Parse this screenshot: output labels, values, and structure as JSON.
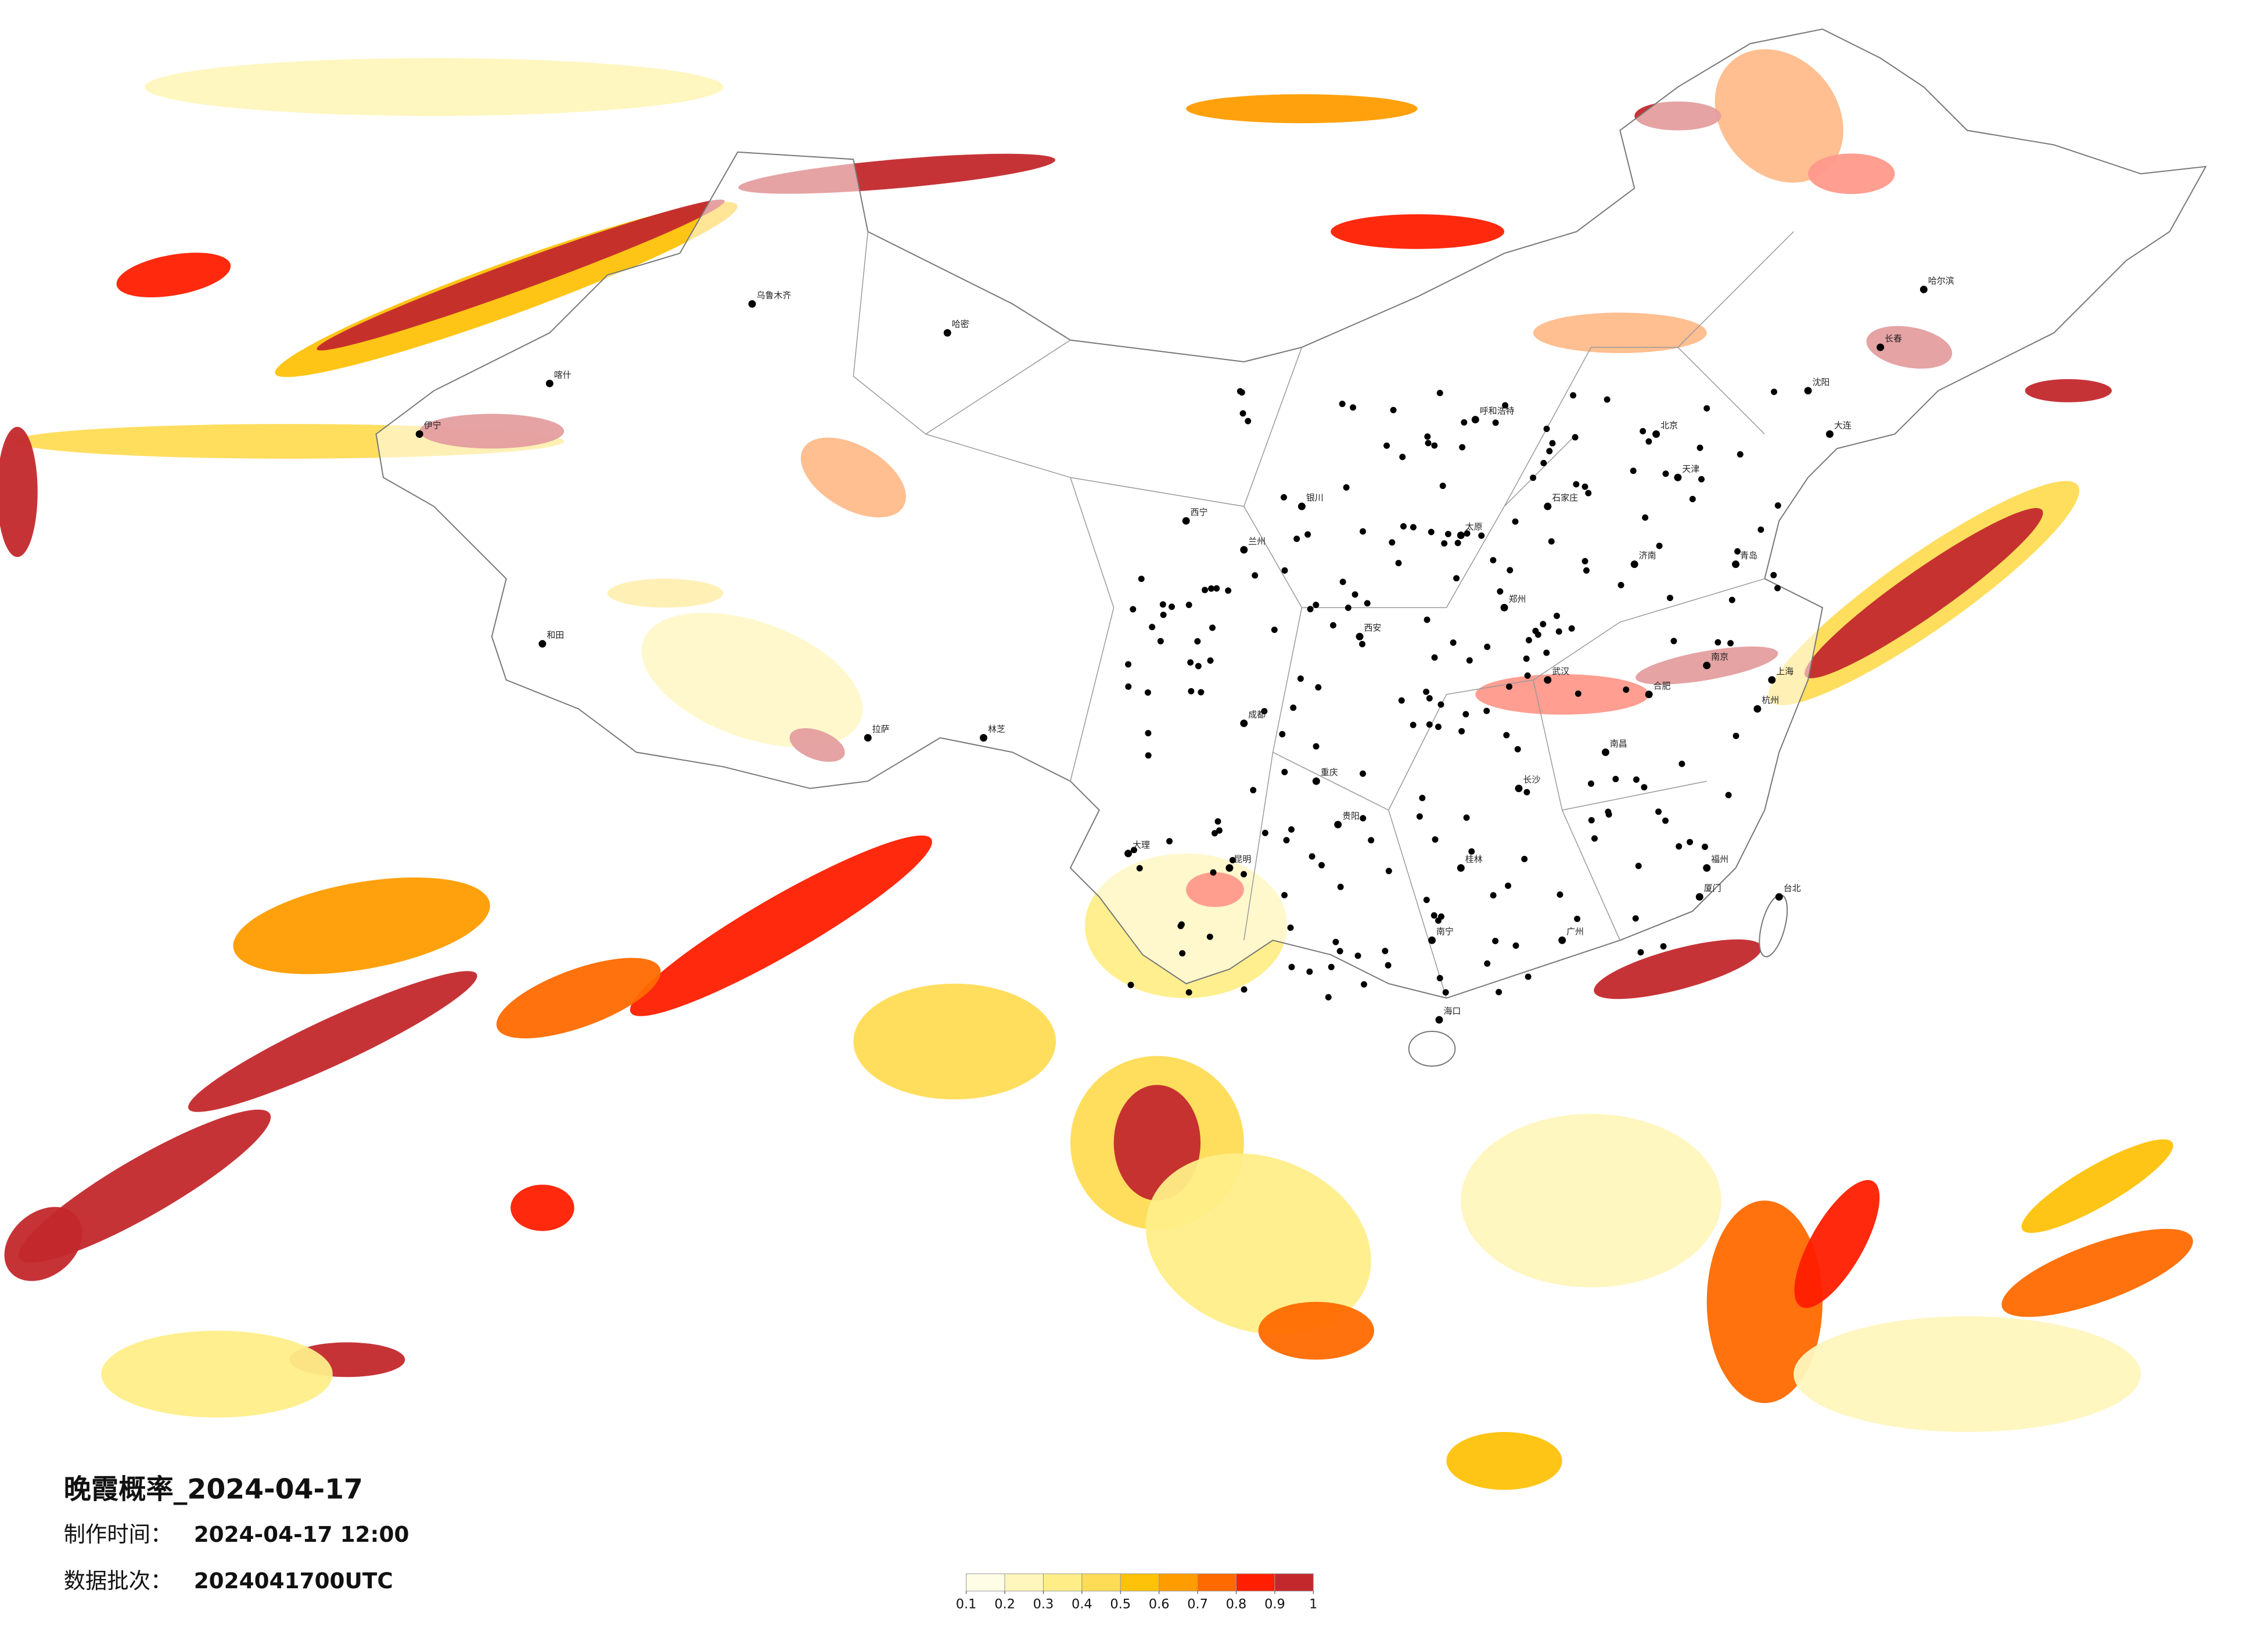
{
  "title": "晚霞概率_2024-04-17",
  "made_label": "制作时间：",
  "made_time": "2024-04-17 12:00",
  "batch_label": "数据批次：",
  "batch": "2024041700UTC",
  "colorbar": {
    "colors": [
      "#fffde6",
      "#fff6bd",
      "#ffee88",
      "#ffdc55",
      "#ffc20a",
      "#ff9c00",
      "#ff6a00",
      "#ff1e00",
      "#c3282c"
    ],
    "ticks": [
      0.1,
      0.2,
      0.3,
      0.4,
      0.5,
      0.6,
      0.7,
      0.8,
      0.9,
      1
    ]
  },
  "cities": [
    "北京",
    "上海",
    "广州",
    "成都",
    "重庆",
    "西安",
    "武汉",
    "南京",
    "杭州",
    "长沙",
    "昆明",
    "贵阳",
    "南宁",
    "福州",
    "南昌",
    "合肥",
    "郑州",
    "济南",
    "太原",
    "石家庄",
    "天津",
    "沈阳",
    "长春",
    "哈尔滨",
    "呼和浩特",
    "银川",
    "兰州",
    "西宁",
    "拉萨",
    "乌鲁木齐",
    "哈密",
    "和田",
    "伊宁",
    "海口",
    "台北",
    "大连",
    "青岛",
    "厦门",
    "桂林",
    "大理",
    "林芝",
    "喀什"
  ]
}
